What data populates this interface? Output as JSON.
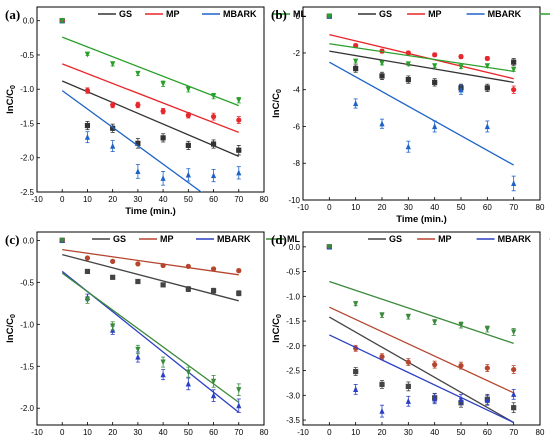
{
  "legend_names": [
    "GS",
    "MP",
    "MBARK",
    "ML"
  ],
  "chart_data": [
    {
      "panel": "(a)",
      "type": "scatter",
      "xlabel": "Time (min.)",
      "ylabel": "lnC/C0",
      "xlim": [
        -10,
        80
      ],
      "ylim": [
        -2.5,
        0.2
      ],
      "xticks": [
        -10,
        0,
        10,
        20,
        30,
        40,
        50,
        60,
        70,
        80
      ],
      "yticks": [
        -2.5,
        -2.0,
        -1.5,
        -1.0,
        -0.5,
        0.0
      ],
      "grid": false,
      "legend_position": "top-right",
      "x": [
        0,
        10,
        20,
        30,
        40,
        50,
        60,
        70
      ],
      "series": [
        {
          "name": "GS",
          "color": "#333333",
          "marker": "square",
          "values": [
            0,
            -1.53,
            -1.57,
            -1.79,
            -1.71,
            -1.82,
            -1.8,
            -1.89
          ],
          "errors": [
            0.02,
            0.06,
            0.06,
            0.07,
            0.06,
            0.06,
            0.06,
            0.07
          ],
          "fit": [
            -0.88,
            -1.98
          ]
        },
        {
          "name": "MP",
          "color": "#e8262b",
          "marker": "circle",
          "values": [
            0,
            -1.02,
            -1.23,
            -1.23,
            -1.32,
            -1.38,
            -1.4,
            -1.45
          ],
          "errors": [
            0.02,
            0.04,
            0.04,
            0.04,
            0.04,
            0.04,
            0.05,
            0.05
          ],
          "fit": [
            -0.63,
            -1.63
          ]
        },
        {
          "name": "MBARK",
          "color": "#1e64c8",
          "marker": "triangle-up",
          "values": [
            0,
            -1.7,
            -1.83,
            -2.2,
            -2.3,
            -2.25,
            -2.26,
            -2.22
          ],
          "errors": [
            0.02,
            0.08,
            0.08,
            0.1,
            0.1,
            0.09,
            0.09,
            0.09
          ],
          "fit": [
            -1.02,
            -2.9
          ]
        },
        {
          "name": "ML",
          "color": "#2aa02a",
          "marker": "triangle-down",
          "values": [
            0,
            -0.49,
            -0.63,
            -0.77,
            -0.92,
            -1.0,
            -1.1,
            -1.16
          ],
          "errors": [
            0.02,
            0.02,
            0.03,
            0.03,
            0.04,
            0.04,
            0.04,
            0.04
          ],
          "fit": [
            -0.24,
            -1.24
          ]
        }
      ]
    },
    {
      "panel": "(b)",
      "type": "scatter",
      "xlabel": "Time (min.)",
      "ylabel": "lnC/C0",
      "xlim": [
        -10,
        80
      ],
      "ylim": [
        -10,
        0.5
      ],
      "xticks": [
        -10,
        0,
        10,
        20,
        30,
        40,
        50,
        60,
        70,
        80
      ],
      "yticks": [
        -10,
        -8,
        -6,
        -4,
        -2,
        0
      ],
      "grid": false,
      "legend_position": "top-right",
      "x": [
        0,
        10,
        20,
        30,
        40,
        50,
        60,
        70
      ],
      "series": [
        {
          "name": "GS",
          "color": "#333333",
          "marker": "square",
          "values": [
            0,
            -2.85,
            -3.25,
            -3.45,
            -3.6,
            -3.9,
            -3.9,
            -2.5
          ],
          "errors": [
            0.05,
            0.2,
            0.2,
            0.2,
            0.2,
            0.2,
            0.2,
            0.2
          ],
          "fit": [
            -1.9,
            -3.6
          ]
        },
        {
          "name": "MP",
          "color": "#e8262b",
          "marker": "circle",
          "values": [
            0,
            -1.6,
            -1.9,
            -2.0,
            -2.1,
            -2.2,
            -2.3,
            -4.0
          ],
          "errors": [
            0.05,
            0.1,
            0.1,
            0.1,
            0.1,
            0.1,
            0.1,
            0.2
          ],
          "fit": [
            -1.0,
            -3.4
          ]
        },
        {
          "name": "MBARK",
          "color": "#1e64c8",
          "marker": "triangle-up",
          "values": [
            0,
            -4.75,
            -5.85,
            -7.1,
            -6.0,
            -4.0,
            -6.0,
            -9.1
          ],
          "errors": [
            0.05,
            0.25,
            0.25,
            0.3,
            0.3,
            0.25,
            0.3,
            0.4
          ],
          "fit": [
            -2.5,
            -8.1
          ]
        },
        {
          "name": "ML",
          "color": "#2aa02a",
          "marker": "triangle-down",
          "values": [
            0,
            -2.45,
            -2.55,
            -2.6,
            -2.7,
            -2.75,
            -2.7,
            -2.9
          ],
          "errors": [
            0.05,
            0.1,
            0.1,
            0.1,
            0.1,
            0.1,
            0.1,
            0.1
          ],
          "fit": [
            -1.5,
            -3.0
          ]
        }
      ]
    },
    {
      "panel": "(c)",
      "type": "scatter",
      "xlabel": "",
      "ylabel": "lnC/C0",
      "xlim": [
        -10,
        80
      ],
      "ylim": [
        -2.2,
        0.1
      ],
      "xticks": [
        -10,
        0,
        10,
        20,
        30,
        40,
        50,
        60,
        70,
        80
      ],
      "yticks": [
        -2.0,
        -1.5,
        -1.0,
        -0.5,
        0.0
      ],
      "grid": false,
      "legend_position": "top-right",
      "x": [
        0,
        10,
        20,
        30,
        40,
        50,
        60,
        70
      ],
      "series": [
        {
          "name": "GS",
          "color": "#444444",
          "marker": "square",
          "values": [
            0,
            -0.37,
            -0.44,
            -0.49,
            -0.53,
            -0.58,
            -0.6,
            -0.63
          ],
          "errors": [
            0.01,
            0.02,
            0.02,
            0.02,
            0.02,
            0.03,
            0.03,
            0.03
          ],
          "fit": [
            -0.17,
            -0.72
          ]
        },
        {
          "name": "MP",
          "color": "#b5452f",
          "marker": "circle",
          "values": [
            0,
            -0.21,
            -0.25,
            -0.28,
            -0.3,
            -0.31,
            -0.34,
            -0.36
          ],
          "errors": [
            0.01,
            0.01,
            0.01,
            0.01,
            0.01,
            0.01,
            0.02,
            0.02
          ],
          "fit": [
            -0.11,
            -0.41
          ]
        },
        {
          "name": "MBARK",
          "color": "#2b3fc4",
          "marker": "triangle-up",
          "values": [
            0,
            -0.68,
            -1.07,
            -1.39,
            -1.6,
            -1.71,
            -1.85,
            -1.97
          ],
          "errors": [
            0.01,
            0.04,
            0.05,
            0.06,
            0.06,
            0.07,
            0.07,
            0.08
          ],
          "fit": [
            -0.37,
            -2.05
          ]
        },
        {
          "name": "ML",
          "color": "#3b8a3b",
          "marker": "triangle-down",
          "values": [
            0,
            -0.71,
            -1.02,
            -1.3,
            -1.45,
            -1.57,
            -1.68,
            -1.78
          ],
          "errors": [
            0.01,
            0.04,
            0.05,
            0.05,
            0.06,
            0.06,
            0.07,
            0.07
          ],
          "fit": [
            -0.39,
            -1.93
          ]
        }
      ]
    },
    {
      "panel": "(d)",
      "type": "scatter",
      "xlabel": "",
      "ylabel": "lnC/C0",
      "xlim": [
        -10,
        80
      ],
      "ylim": [
        -3.6,
        0.3
      ],
      "xticks": [
        -10,
        0,
        10,
        20,
        30,
        40,
        50,
        60,
        70,
        80
      ],
      "yticks": [
        -3.5,
        -3.0,
        -2.5,
        -2.0,
        -1.5,
        -1.0,
        -0.5,
        0.0
      ],
      "grid": false,
      "legend_position": "top-right",
      "x": [
        0,
        10,
        20,
        30,
        40,
        50,
        60,
        70
      ],
      "series": [
        {
          "name": "GS",
          "color": "#444444",
          "marker": "square",
          "values": [
            0,
            -2.52,
            -2.78,
            -2.82,
            -3.05,
            -3.15,
            -3.08,
            -3.25
          ],
          "errors": [
            0.02,
            0.08,
            0.08,
            0.09,
            0.09,
            0.09,
            0.1,
            0.1
          ],
          "fit": [
            -1.42,
            -3.55
          ]
        },
        {
          "name": "MP",
          "color": "#b5452f",
          "marker": "circle",
          "values": [
            0,
            -2.05,
            -2.22,
            -2.33,
            -2.38,
            -2.4,
            -2.45,
            -2.48
          ],
          "errors": [
            0.02,
            0.06,
            0.06,
            0.07,
            0.07,
            0.07,
            0.07,
            0.08
          ],
          "fit": [
            -1.22,
            -2.95
          ]
        },
        {
          "name": "MBARK",
          "color": "#2b3fc4",
          "marker": "triangle-up",
          "values": [
            0,
            -2.88,
            -3.32,
            -3.12,
            -3.07,
            -3.08,
            -3.1,
            -2.98
          ],
          "errors": [
            0.02,
            0.1,
            0.12,
            0.1,
            0.1,
            0.1,
            0.1,
            0.1
          ],
          "fit": [
            -1.78,
            -3.55
          ]
        },
        {
          "name": "ML",
          "color": "#3b8a3b",
          "marker": "triangle-down",
          "values": [
            0,
            -1.15,
            -1.38,
            -1.41,
            -1.52,
            -1.58,
            -1.66,
            -1.72
          ],
          "errors": [
            0.02,
            0.04,
            0.05,
            0.05,
            0.05,
            0.06,
            0.06,
            0.07
          ],
          "fit": [
            -0.7,
            -1.95
          ]
        }
      ]
    }
  ]
}
